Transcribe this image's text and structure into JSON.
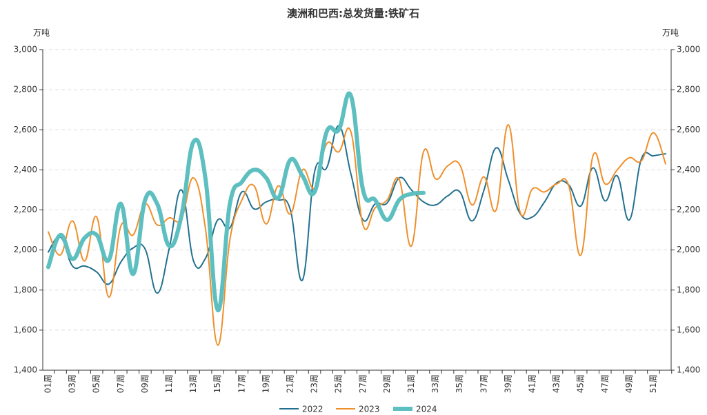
{
  "chart_data": {
    "type": "line",
    "title": "澳洲和巴西:总发货量:铁矿石",
    "y_label": "万吨",
    "y2_label": "万吨",
    "categories": [
      "01周",
      null,
      "03周",
      null,
      "05周",
      null,
      "07周",
      null,
      "09周",
      null,
      "11周",
      null,
      "13周",
      null,
      "15周",
      null,
      "17周",
      null,
      "19周",
      null,
      "21周",
      null,
      "23周",
      null,
      "25周",
      null,
      "27周",
      null,
      "29周",
      null,
      "31周",
      null,
      "33周",
      null,
      "35周",
      null,
      "37周",
      null,
      "39周",
      null,
      "41周",
      null,
      "43周",
      null,
      "45周",
      null,
      "47周",
      null,
      "49周",
      null,
      "51周",
      null
    ],
    "series": [
      {
        "name": "2022",
        "color": "#22708f",
        "width": 2,
        "values": [
          1990,
          2065,
          1920,
          1920,
          1890,
          1830,
          1940,
          2010,
          2005,
          1785,
          2010,
          2300,
          1945,
          1960,
          2150,
          2110,
          2290,
          2205,
          2240,
          2250,
          2200,
          1850,
          2390,
          2410,
          2620,
          2380,
          2150,
          2230,
          2235,
          2360,
          2300,
          2240,
          2225,
          2270,
          2290,
          2145,
          2300,
          2510,
          2350,
          2180,
          2165,
          2240,
          2335,
          2325,
          2220,
          2410,
          2245,
          2370,
          2150,
          2455,
          2470,
          2480
        ]
      },
      {
        "name": "2023",
        "color": "#ef8f2a",
        "width": 2,
        "values": [
          2090,
          1975,
          2145,
          1945,
          2165,
          1765,
          2120,
          2075,
          2230,
          2125,
          2160,
          2155,
          2360,
          2100,
          1525,
          2050,
          2250,
          2320,
          2130,
          2320,
          2180,
          2400,
          2310,
          2530,
          2490,
          2590,
          2125,
          2210,
          2250,
          2350,
          2020,
          2490,
          2355,
          2420,
          2425,
          2225,
          2365,
          2200,
          2625,
          2185,
          2305,
          2290,
          2330,
          2320,
          1975,
          2470,
          2330,
          2400,
          2460,
          2445,
          2585,
          2430
        ]
      },
      {
        "name": "2024",
        "color": "#5dbfc0",
        "width": 6,
        "values": [
          1915,
          2075,
          1955,
          2060,
          2075,
          1950,
          2230,
          1880,
          2250,
          2230,
          2020,
          2170,
          2540,
          2350,
          1700,
          2230,
          2340,
          2400,
          2360,
          2260,
          2450,
          2370,
          2290,
          2590,
          2600,
          2770,
          2300,
          2250,
          2150,
          2250,
          2280,
          2285,
          null,
          null,
          null,
          null,
          null,
          null,
          null,
          null,
          null,
          null,
          null,
          null,
          null,
          null,
          null,
          null,
          null,
          null,
          null,
          null
        ]
      }
    ],
    "ylim": [
      1400,
      3000
    ],
    "yticks": [
      {
        "value": 1400,
        "label": "1,400"
      },
      {
        "value": 1600,
        "label": "1,600"
      },
      {
        "value": 1800,
        "label": "1,800"
      },
      {
        "value": 2000,
        "label": "2,000"
      },
      {
        "value": 2200,
        "label": "2,200"
      },
      {
        "value": 2400,
        "label": "2,400"
      },
      {
        "value": 2600,
        "label": "2,600"
      },
      {
        "value": 2800,
        "label": "2,800"
      },
      {
        "value": 3000,
        "label": "3,000"
      }
    ],
    "y2lim": [
      1400,
      3000
    ],
    "y2ticks": [
      {
        "value": 1400,
        "label": "1,400"
      },
      {
        "value": 1600,
        "label": "1,600"
      },
      {
        "value": 1800,
        "label": "1,800"
      },
      {
        "value": 2000,
        "label": "2,000"
      },
      {
        "value": 2200,
        "label": "2,200"
      },
      {
        "value": 2400,
        "label": "2,400"
      },
      {
        "value": 2600,
        "label": "2,600"
      },
      {
        "value": 2800,
        "label": "2,800"
      },
      {
        "value": 3000,
        "label": "3,000"
      }
    ],
    "grid": true,
    "legend": "bottom"
  }
}
